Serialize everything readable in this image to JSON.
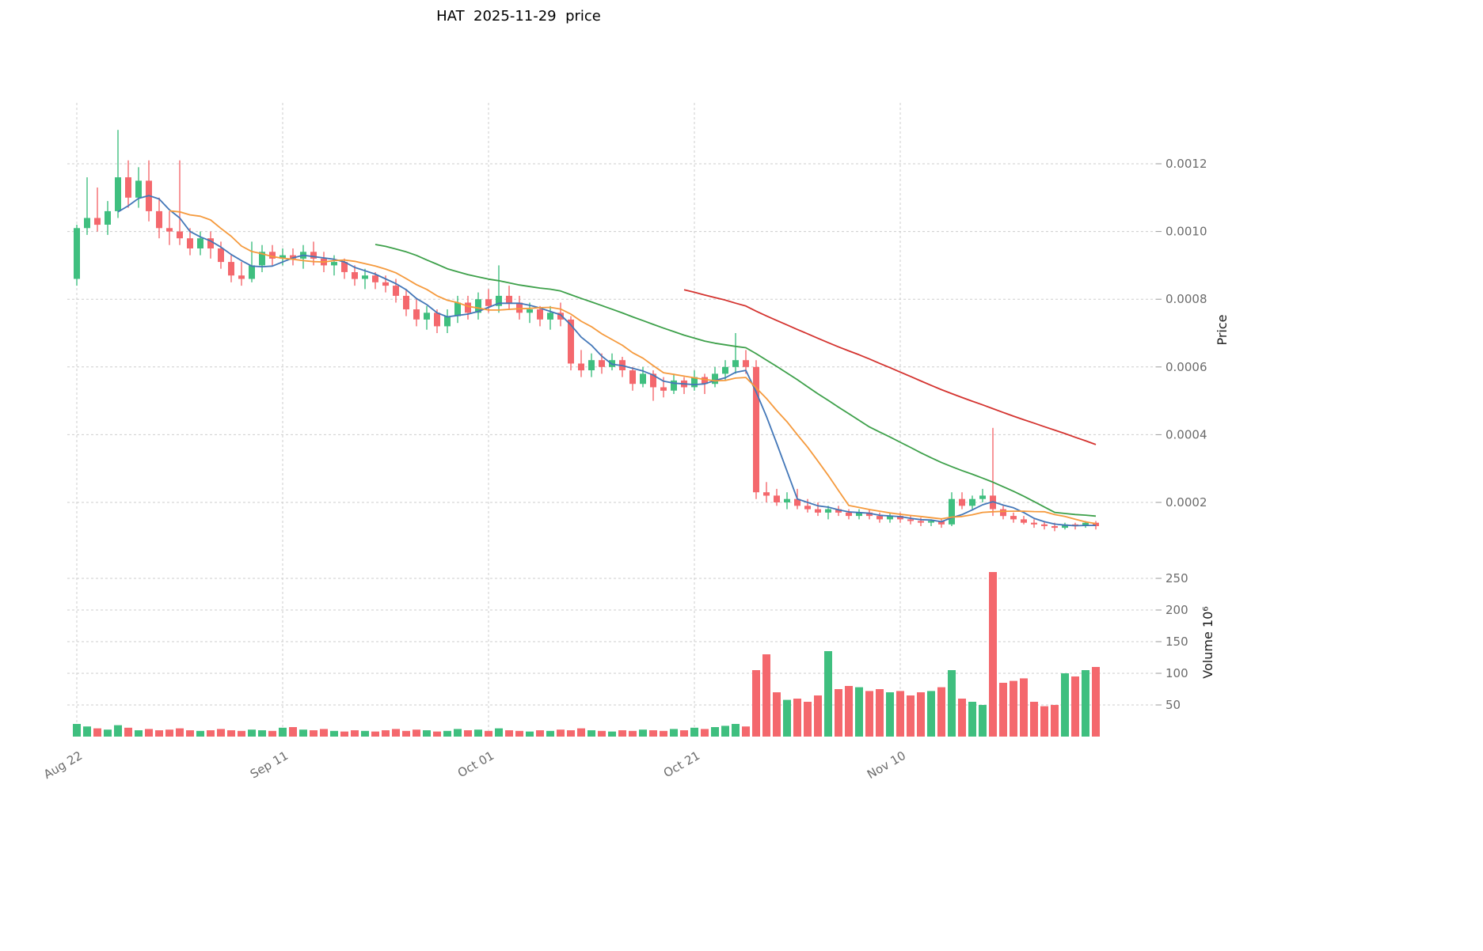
{
  "title": "HAT  2025-11-29  price",
  "axes": {
    "price_axis_label": "Price",
    "volume_axis_label": "Volume 10⁶",
    "price_ticks": [
      "0.0002",
      "0.0004",
      "0.0006",
      "0.0008",
      "0.0010",
      "0.0012"
    ],
    "volume_ticks": [
      "50",
      "100",
      "150",
      "200",
      "250"
    ],
    "x_ticks": [
      {
        "label": "Aug 22",
        "index": 0
      },
      {
        "label": "Sep 11",
        "index": 20
      },
      {
        "label": "Oct 01",
        "index": 40
      },
      {
        "label": "Oct 21",
        "index": 60
      },
      {
        "label": "Nov 10",
        "index": 80
      }
    ]
  },
  "chart_data": {
    "type": "candlestick",
    "title": "HAT  2025-11-29  price",
    "price_ylim": [
      0.0001,
      0.00138
    ],
    "volume_ylim": [
      0,
      289
    ],
    "volume_unit": "1e6",
    "grid": true,
    "colors": {
      "up": "#3fbf7f",
      "down": "#f4686d",
      "ma5": "#4377b8",
      "ma10": "#f59a3d",
      "ma30": "#3da04a",
      "ma60": "#d4332f",
      "grid": "#cdcdcd",
      "tick_text": "#6b6b6b"
    },
    "moving_averages": [
      {
        "name": "ma5",
        "period": 5,
        "color_key": "ma5"
      },
      {
        "name": "ma10",
        "period": 10,
        "color_key": "ma10"
      },
      {
        "name": "ma30",
        "period": 30,
        "color_key": "ma30"
      },
      {
        "name": "ma60",
        "period": 60,
        "color_key": "ma60"
      }
    ],
    "columns": [
      "date",
      "open",
      "high",
      "low",
      "close",
      "volume_millions"
    ],
    "rows": [
      [
        "2025-08-22",
        0.00086,
        0.00102,
        0.00084,
        0.00101,
        20
      ],
      [
        "2025-08-23",
        0.00101,
        0.00116,
        0.00099,
        0.00104,
        16
      ],
      [
        "2025-08-24",
        0.00104,
        0.00113,
        0.001,
        0.00102,
        13
      ],
      [
        "2025-08-25",
        0.00102,
        0.00109,
        0.00099,
        0.00106,
        11
      ],
      [
        "2025-08-26",
        0.00106,
        0.0013,
        0.00104,
        0.00116,
        18
      ],
      [
        "2025-08-27",
        0.00116,
        0.00121,
        0.00107,
        0.0011,
        14
      ],
      [
        "2025-08-28",
        0.0011,
        0.00119,
        0.00107,
        0.00115,
        10
      ],
      [
        "2025-08-29",
        0.00115,
        0.00121,
        0.00103,
        0.00106,
        12
      ],
      [
        "2025-08-30",
        0.00106,
        0.0011,
        0.00098,
        0.00101,
        10
      ],
      [
        "2025-08-31",
        0.00101,
        0.00106,
        0.00096,
        0.001,
        11
      ],
      [
        "2025-09-01",
        0.001,
        0.00121,
        0.00096,
        0.00098,
        13
      ],
      [
        "2025-09-02",
        0.00098,
        0.00101,
        0.00093,
        0.00095,
        10
      ],
      [
        "2025-09-03",
        0.00095,
        0.001,
        0.00093,
        0.00098,
        9
      ],
      [
        "2025-09-04",
        0.00098,
        0.001,
        0.00092,
        0.00095,
        10
      ],
      [
        "2025-09-05",
        0.00095,
        0.00097,
        0.00089,
        0.00091,
        12
      ],
      [
        "2025-09-06",
        0.00091,
        0.00093,
        0.00085,
        0.00087,
        10
      ],
      [
        "2025-09-07",
        0.00087,
        0.00091,
        0.00084,
        0.00086,
        9
      ],
      [
        "2025-09-08",
        0.00086,
        0.00097,
        0.00085,
        0.0009,
        11
      ],
      [
        "2025-09-09",
        0.0009,
        0.00096,
        0.00088,
        0.00094,
        10
      ],
      [
        "2025-09-10",
        0.00094,
        0.00096,
        0.0009,
        0.00092,
        9
      ],
      [
        "2025-09-11",
        0.00092,
        0.00095,
        0.0009,
        0.00093,
        14
      ],
      [
        "2025-09-12",
        0.00093,
        0.00095,
        0.0009,
        0.00092,
        15
      ],
      [
        "2025-09-13",
        0.00092,
        0.00096,
        0.00089,
        0.00094,
        11
      ],
      [
        "2025-09-14",
        0.00094,
        0.00097,
        0.0009,
        0.00092,
        10
      ],
      [
        "2025-09-15",
        0.00092,
        0.00094,
        0.00088,
        0.0009,
        12
      ],
      [
        "2025-09-16",
        0.0009,
        0.00093,
        0.00087,
        0.00091,
        9
      ],
      [
        "2025-09-17",
        0.00091,
        0.00092,
        0.00086,
        0.00088,
        8
      ],
      [
        "2025-09-18",
        0.00088,
        0.0009,
        0.00084,
        0.00086,
        10
      ],
      [
        "2025-09-19",
        0.00086,
        0.00089,
        0.00083,
        0.00087,
        9
      ],
      [
        "2025-09-20",
        0.00087,
        0.00088,
        0.00083,
        0.00085,
        8
      ],
      [
        "2025-09-21",
        0.00085,
        0.00087,
        0.00082,
        0.00084,
        10
      ],
      [
        "2025-09-22",
        0.00084,
        0.00086,
        0.00079,
        0.00081,
        12
      ],
      [
        "2025-09-23",
        0.00081,
        0.00083,
        0.00075,
        0.00077,
        9
      ],
      [
        "2025-09-24",
        0.00077,
        0.0008,
        0.00072,
        0.00074,
        11
      ],
      [
        "2025-09-25",
        0.00074,
        0.00078,
        0.00071,
        0.00076,
        10
      ],
      [
        "2025-09-26",
        0.00076,
        0.00077,
        0.0007,
        0.00072,
        8
      ],
      [
        "2025-09-27",
        0.00072,
        0.00077,
        0.0007,
        0.00075,
        9
      ],
      [
        "2025-09-28",
        0.00075,
        0.00081,
        0.00073,
        0.00079,
        12
      ],
      [
        "2025-09-29",
        0.00079,
        0.00081,
        0.00074,
        0.00076,
        10
      ],
      [
        "2025-09-30",
        0.00076,
        0.00082,
        0.00074,
        0.0008,
        11
      ],
      [
        "2025-10-01",
        0.0008,
        0.00083,
        0.00076,
        0.00078,
        9
      ],
      [
        "2025-10-02",
        0.00078,
        0.0009,
        0.00076,
        0.00081,
        13
      ],
      [
        "2025-10-03",
        0.00081,
        0.00084,
        0.00077,
        0.00079,
        10
      ],
      [
        "2025-10-04",
        0.00079,
        0.00081,
        0.00074,
        0.00076,
        9
      ],
      [
        "2025-10-05",
        0.00076,
        0.00079,
        0.00073,
        0.00077,
        8
      ],
      [
        "2025-10-06",
        0.00077,
        0.00078,
        0.00072,
        0.00074,
        10
      ],
      [
        "2025-10-07",
        0.00074,
        0.00078,
        0.00071,
        0.00076,
        9
      ],
      [
        "2025-10-08",
        0.00076,
        0.00079,
        0.00072,
        0.00074,
        11
      ],
      [
        "2025-10-09",
        0.00074,
        0.00075,
        0.00059,
        0.00061,
        10
      ],
      [
        "2025-10-10",
        0.00061,
        0.00065,
        0.00057,
        0.00059,
        13
      ],
      [
        "2025-10-11",
        0.00059,
        0.00064,
        0.00057,
        0.00062,
        10
      ],
      [
        "2025-10-12",
        0.00062,
        0.00064,
        0.00058,
        0.0006,
        9
      ],
      [
        "2025-10-13",
        0.0006,
        0.00064,
        0.00059,
        0.00062,
        8
      ],
      [
        "2025-10-14",
        0.00062,
        0.00063,
        0.00057,
        0.00059,
        10
      ],
      [
        "2025-10-15",
        0.00059,
        0.0006,
        0.00053,
        0.00055,
        9
      ],
      [
        "2025-10-16",
        0.00055,
        0.0006,
        0.00054,
        0.00058,
        11
      ],
      [
        "2025-10-17",
        0.00058,
        0.00059,
        0.0005,
        0.00054,
        10
      ],
      [
        "2025-10-18",
        0.00054,
        0.00057,
        0.00051,
        0.00053,
        9
      ],
      [
        "2025-10-19",
        0.00053,
        0.00058,
        0.00052,
        0.00056,
        12
      ],
      [
        "2025-10-20",
        0.00056,
        0.00057,
        0.00052,
        0.00054,
        10
      ],
      [
        "2025-10-21",
        0.00054,
        0.00059,
        0.00053,
        0.00057,
        14
      ],
      [
        "2025-10-22",
        0.00057,
        0.00058,
        0.00052,
        0.00055,
        12
      ],
      [
        "2025-10-23",
        0.00055,
        0.0006,
        0.00054,
        0.00058,
        15
      ],
      [
        "2025-10-24",
        0.00058,
        0.00062,
        0.00056,
        0.0006,
        17
      ],
      [
        "2025-10-25",
        0.0006,
        0.0007,
        0.00058,
        0.00062,
        20
      ],
      [
        "2025-10-26",
        0.00062,
        0.00065,
        0.00058,
        0.0006,
        16
      ],
      [
        "2025-10-27",
        0.0006,
        0.00062,
        0.00021,
        0.00023,
        105
      ],
      [
        "2025-10-28",
        0.00023,
        0.00026,
        0.0002,
        0.00022,
        130
      ],
      [
        "2025-10-29",
        0.00022,
        0.00024,
        0.00019,
        0.0002,
        70
      ],
      [
        "2025-10-30",
        0.0002,
        0.00023,
        0.00018,
        0.00021,
        58
      ],
      [
        "2025-10-31",
        0.00021,
        0.00024,
        0.00018,
        0.00019,
        60
      ],
      [
        "2025-11-01",
        0.00019,
        0.00021,
        0.00017,
        0.00018,
        55
      ],
      [
        "2025-11-02",
        0.00018,
        0.0002,
        0.00016,
        0.00017,
        65
      ],
      [
        "2025-11-03",
        0.00017,
        0.00019,
        0.00015,
        0.00018,
        135
      ],
      [
        "2025-11-04",
        0.00018,
        0.00019,
        0.00016,
        0.00017,
        75
      ],
      [
        "2025-11-05",
        0.00017,
        0.00018,
        0.00015,
        0.00016,
        80
      ],
      [
        "2025-11-06",
        0.00016,
        0.00018,
        0.00015,
        0.00017,
        78
      ],
      [
        "2025-11-07",
        0.00017,
        0.00018,
        0.00015,
        0.00016,
        72
      ],
      [
        "2025-11-08",
        0.00016,
        0.00017,
        0.00014,
        0.00015,
        75
      ],
      [
        "2025-11-09",
        0.00015,
        0.00017,
        0.00014,
        0.00016,
        70
      ],
      [
        "2025-11-10",
        0.00016,
        0.00017,
        0.00014,
        0.00015,
        72
      ],
      [
        "2025-11-11",
        0.00015,
        0.00016,
        0.000135,
        0.000145,
        65
      ],
      [
        "2025-11-12",
        0.000145,
        0.000155,
        0.00013,
        0.00014,
        70
      ],
      [
        "2025-11-13",
        0.00014,
        0.00015,
        0.00013,
        0.000145,
        72
      ],
      [
        "2025-11-14",
        0.000145,
        0.00015,
        0.000125,
        0.000135,
        78
      ],
      [
        "2025-11-15",
        0.000135,
        0.00023,
        0.00013,
        0.00021,
        105
      ],
      [
        "2025-11-16",
        0.00021,
        0.00023,
        0.00018,
        0.00019,
        60
      ],
      [
        "2025-11-17",
        0.00019,
        0.00022,
        0.00018,
        0.00021,
        55
      ],
      [
        "2025-11-18",
        0.00021,
        0.00024,
        0.0002,
        0.00022,
        50
      ],
      [
        "2025-11-19",
        0.00022,
        0.00042,
        0.00016,
        0.00018,
        260
      ],
      [
        "2025-11-20",
        0.00018,
        0.00019,
        0.00015,
        0.00016,
        85
      ],
      [
        "2025-11-21",
        0.00016,
        0.00017,
        0.00014,
        0.00015,
        88
      ],
      [
        "2025-11-22",
        0.00015,
        0.00016,
        0.000135,
        0.00014,
        92
      ],
      [
        "2025-11-23",
        0.00014,
        0.00015,
        0.000125,
        0.000135,
        55
      ],
      [
        "2025-11-24",
        0.000135,
        0.000145,
        0.00012,
        0.00013,
        48
      ],
      [
        "2025-11-25",
        0.00013,
        0.00014,
        0.000115,
        0.000125,
        50
      ],
      [
        "2025-11-26",
        0.000125,
        0.00014,
        0.00012,
        0.000135,
        100
      ],
      [
        "2025-11-27",
        0.000135,
        0.00014,
        0.00012,
        0.00013,
        95
      ],
      [
        "2025-11-28",
        0.00013,
        0.000145,
        0.000125,
        0.00014,
        105
      ],
      [
        "2025-11-29",
        0.00014,
        0.000145,
        0.00012,
        0.00013,
        110
      ]
    ]
  }
}
